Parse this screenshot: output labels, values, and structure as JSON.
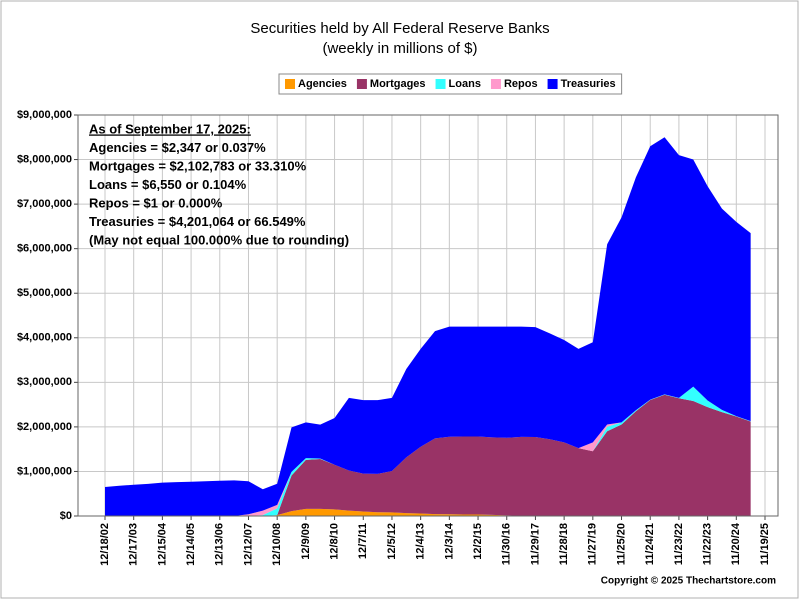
{
  "chart_data": {
    "type": "stacked_area",
    "title": "Securities held by All Federal Reserve Banks",
    "subtitle": "(weekly in millions of $)",
    "annotation": [
      "As of September 17, 2025:",
      "Agencies = $2,347 or 0.037%",
      "Mortgages = $2,102,783 or 33.310%",
      "Loans = $6,550 or 0.104%",
      "Repos = $1 or 0.000%",
      "Treasuries = $4,201,064 or 66.549%",
      "(May not equal 100.000% due to rounding)"
    ],
    "copyright": "Copyright © 2025 Thechartstore.com",
    "categories": [
      "12/18/02",
      null,
      "12/17/03",
      null,
      "12/15/04",
      null,
      "12/14/05",
      null,
      "12/13/06",
      null,
      "12/12/07",
      null,
      "12/10/08",
      null,
      "12/9/09",
      null,
      "12/8/10",
      null,
      "12/7/11",
      null,
      "12/5/12",
      null,
      "12/4/13",
      null,
      "12/3/14",
      null,
      "12/2/15",
      null,
      "11/30/16",
      null,
      "11/29/17",
      null,
      "11/28/18",
      null,
      "11/27/19",
      null,
      "11/25/20",
      null,
      "11/24/21",
      null,
      "11/23/22",
      null,
      "11/22/23",
      null,
      "11/20/24",
      null,
      "11/19/25"
    ],
    "series": [
      {
        "name": "Agencies",
        "color": "#ff9900",
        "values": [
          0,
          0,
          0,
          0,
          0,
          0,
          0,
          0,
          0,
          0,
          0,
          0,
          20000,
          110000,
          160000,
          160000,
          150000,
          120000,
          100000,
          85000,
          80000,
          65000,
          55000,
          42000,
          40000,
          35000,
          33000,
          25000,
          15000,
          5000,
          4000,
          2400,
          2400,
          2400,
          2400,
          2400,
          2400,
          2400,
          2400,
          2400,
          2400,
          2400,
          2400,
          2400,
          2400,
          2347,
          null
        ]
      },
      {
        "name": "Mortgages",
        "color": "#993366",
        "values": [
          0,
          0,
          0,
          0,
          0,
          0,
          0,
          0,
          0,
          0,
          0,
          0,
          0,
          800000,
          1100000,
          1120000,
          1000000,
          900000,
          850000,
          860000,
          930000,
          1250000,
          1500000,
          1700000,
          1740000,
          1750000,
          1750000,
          1740000,
          1740000,
          1770000,
          1770000,
          1720000,
          1650000,
          1520000,
          1450000,
          1900000,
          2050000,
          2350000,
          2600000,
          2720000,
          2640000,
          2580000,
          2440000,
          2330000,
          2230000,
          2120000,
          null
        ]
      },
      {
        "name": "Loans",
        "color": "#33ffff",
        "values": [
          0,
          0,
          0,
          0,
          0,
          0,
          0,
          0,
          0,
          0,
          0,
          20000,
          150000,
          80000,
          40000,
          10000,
          0,
          0,
          0,
          0,
          0,
          0,
          0,
          0,
          0,
          0,
          0,
          0,
          0,
          0,
          0,
          0,
          0,
          0,
          0,
          100000,
          50000,
          20000,
          10000,
          8000,
          10000,
          320000,
          150000,
          50000,
          10000,
          7000,
          null
        ]
      },
      {
        "name": "Repos",
        "color": "#ff99cc",
        "values": [
          0,
          0,
          0,
          0,
          0,
          0,
          0,
          0,
          0,
          0,
          40000,
          100000,
          80000,
          0,
          0,
          0,
          0,
          0,
          0,
          0,
          0,
          0,
          0,
          0,
          0,
          0,
          0,
          0,
          0,
          0,
          0,
          0,
          0,
          0,
          200000,
          50000,
          0,
          0,
          0,
          0,
          0,
          0,
          0,
          0,
          0,
          0,
          null
        ]
      },
      {
        "name": "Treasuries",
        "color": "#0000ff",
        "values": [
          650000,
          680000,
          700000,
          720000,
          750000,
          760000,
          770000,
          780000,
          790000,
          800000,
          740000,
          480000,
          475000,
          1000000,
          800000,
          760000,
          1050000,
          1630000,
          1650000,
          1655000,
          1640000,
          1985000,
          2195000,
          2408000,
          2470000,
          2465000,
          2467000,
          2485000,
          2495000,
          2475000,
          2466000,
          2377600,
          2297600,
          2227600,
          2247600,
          4047600,
          4600000,
          5227600,
          5687600,
          5769600,
          5447600,
          5097600,
          4807600,
          4517600,
          4357600,
          4220000,
          null
        ]
      }
    ],
    "ylim": [
      0,
      9000000
    ],
    "yticks": [
      {
        "value": 0,
        "label": "$0"
      },
      {
        "value": 1000000,
        "label": "$1,000,000"
      },
      {
        "value": 2000000,
        "label": "$2,000,000"
      },
      {
        "value": 3000000,
        "label": "$3,000,000"
      },
      {
        "value": 4000000,
        "label": "$4,000,000"
      },
      {
        "value": 5000000,
        "label": "$5,000,000"
      },
      {
        "value": 6000000,
        "label": "$6,000,000"
      },
      {
        "value": 7000000,
        "label": "$7,000,000"
      },
      {
        "value": 8000000,
        "label": "$8,000,000"
      },
      {
        "value": 9000000,
        "label": "$9,000,000"
      }
    ],
    "grid": true
  }
}
